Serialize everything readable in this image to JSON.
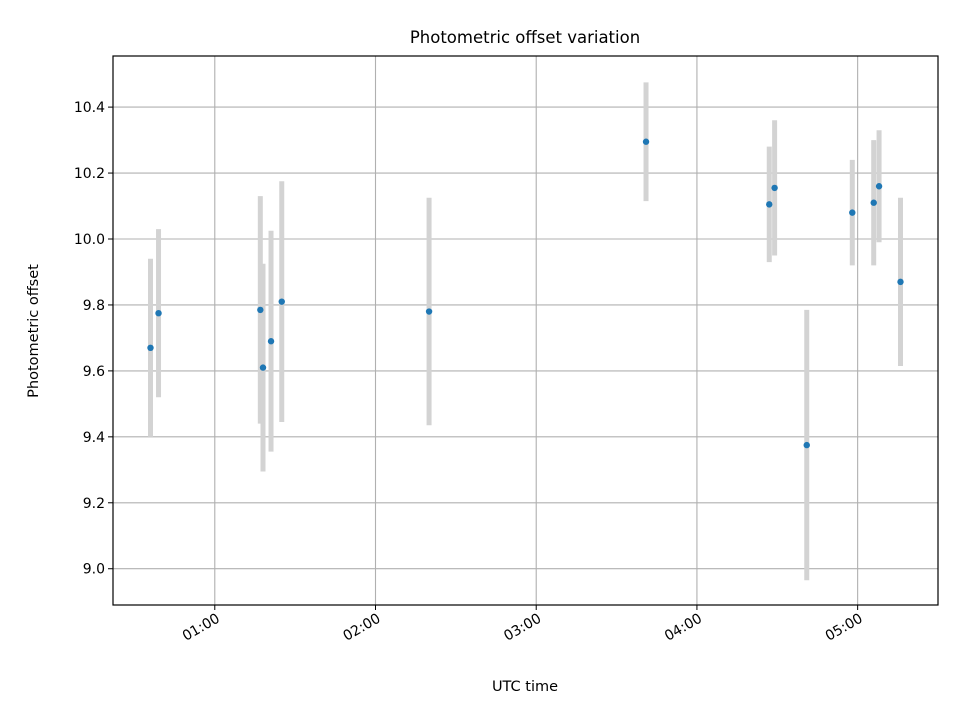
{
  "chart_data": {
    "type": "scatter",
    "title": "Photometric offset variation",
    "xlabel": "UTC time",
    "ylabel": "Photometric offset",
    "xlim": [
      "00:22",
      "05:30"
    ],
    "ylim": [
      8.89,
      10.555
    ],
    "x_ticks": [
      "01:00",
      "02:00",
      "03:00",
      "04:00",
      "05:00"
    ],
    "y_ticks": [
      "9.0",
      "9.2",
      "9.4",
      "9.6",
      "9.8",
      "10.0",
      "10.2",
      "10.4"
    ],
    "grid": true,
    "marker_color": "#1f77b4",
    "errorbar_color": "#d3d3d3",
    "points": [
      {
        "x": "00:36",
        "y": 9.67,
        "err": 0.27
      },
      {
        "x": "00:39",
        "y": 9.775,
        "err": 0.255
      },
      {
        "x": "01:17",
        "y": 9.785,
        "err": 0.345
      },
      {
        "x": "01:18",
        "y": 9.61,
        "err": 0.315
      },
      {
        "x": "01:21",
        "y": 9.69,
        "err": 0.335
      },
      {
        "x": "01:25",
        "y": 9.81,
        "err": 0.365
      },
      {
        "x": "02:20",
        "y": 9.78,
        "err": 0.345
      },
      {
        "x": "03:41",
        "y": 10.295,
        "err": 0.18
      },
      {
        "x": "04:27",
        "y": 10.105,
        "err": 0.175
      },
      {
        "x": "04:29",
        "y": 10.155,
        "err": 0.205
      },
      {
        "x": "04:41",
        "y": 9.375,
        "err": 0.41
      },
      {
        "x": "04:58",
        "y": 10.08,
        "err": 0.16
      },
      {
        "x": "05:06",
        "y": 10.11,
        "err": 0.19
      },
      {
        "x": "05:08",
        "y": 10.16,
        "err": 0.17
      },
      {
        "x": "05:16",
        "y": 9.87,
        "err": 0.255
      }
    ]
  }
}
